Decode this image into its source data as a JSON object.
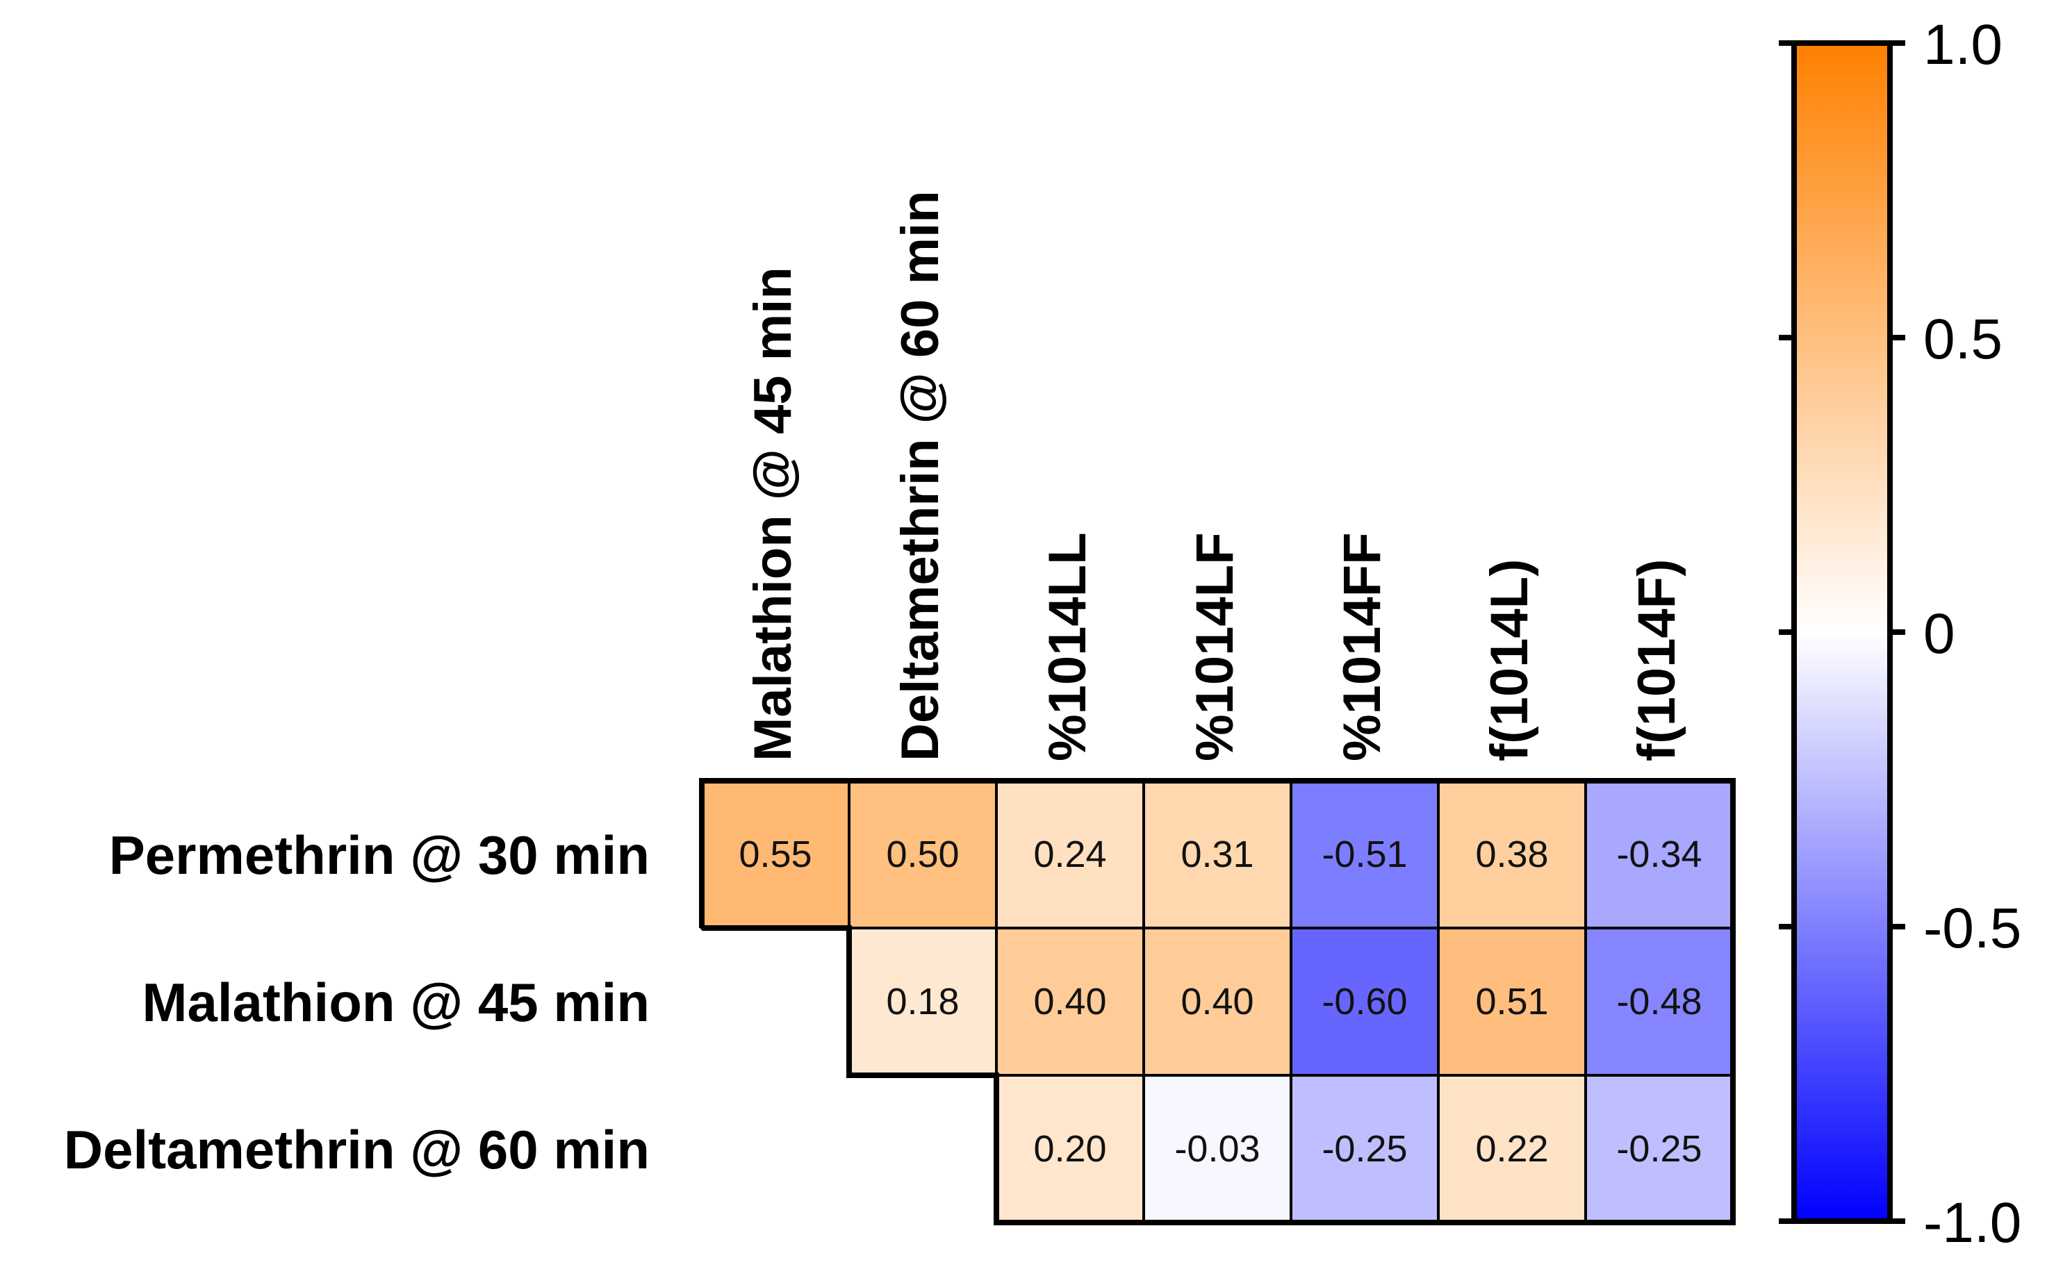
{
  "chart_data": {
    "type": "heatmap",
    "title": "",
    "columns": [
      "Malathion @ 45 min",
      "Deltamethrin @ 60 min",
      "%1014LL",
      "%1014LF",
      "%1014FF",
      "f(1014L)",
      "f(1014F)"
    ],
    "rows": [
      "Permethrin @ 30 min",
      "Malathion @ 45 min",
      "Deltamethrin @ 60 min"
    ],
    "values": [
      [
        0.55,
        0.5,
        0.24,
        0.31,
        -0.51,
        0.38,
        -0.34
      ],
      [
        null,
        0.18,
        0.4,
        0.4,
        -0.6,
        0.51,
        -0.48
      ],
      [
        null,
        null,
        0.2,
        -0.03,
        -0.25,
        0.22,
        -0.25
      ]
    ],
    "value_labels": [
      [
        "0.55",
        "0.50",
        "0.24",
        "0.31",
        "-0.51",
        "0.38",
        "-0.34"
      ],
      [
        null,
        "0.18",
        "0.40",
        "0.40",
        "-0.60",
        "0.51",
        "-0.48"
      ],
      [
        null,
        null,
        "0.20",
        "-0.03",
        "-0.25",
        "0.22",
        "-0.25"
      ]
    ],
    "colorbar": {
      "min": -1.0,
      "max": 1.0,
      "ticks": [
        1.0,
        0.5,
        0,
        -0.5,
        -1.0
      ],
      "tick_labels": [
        "1.0",
        "0.5",
        "0",
        "-0.5",
        "-1.0"
      ],
      "colors": {
        "negative": "#0000ff",
        "zero": "#ffffff",
        "positive": "#ff8000"
      },
      "placement": "right"
    }
  }
}
